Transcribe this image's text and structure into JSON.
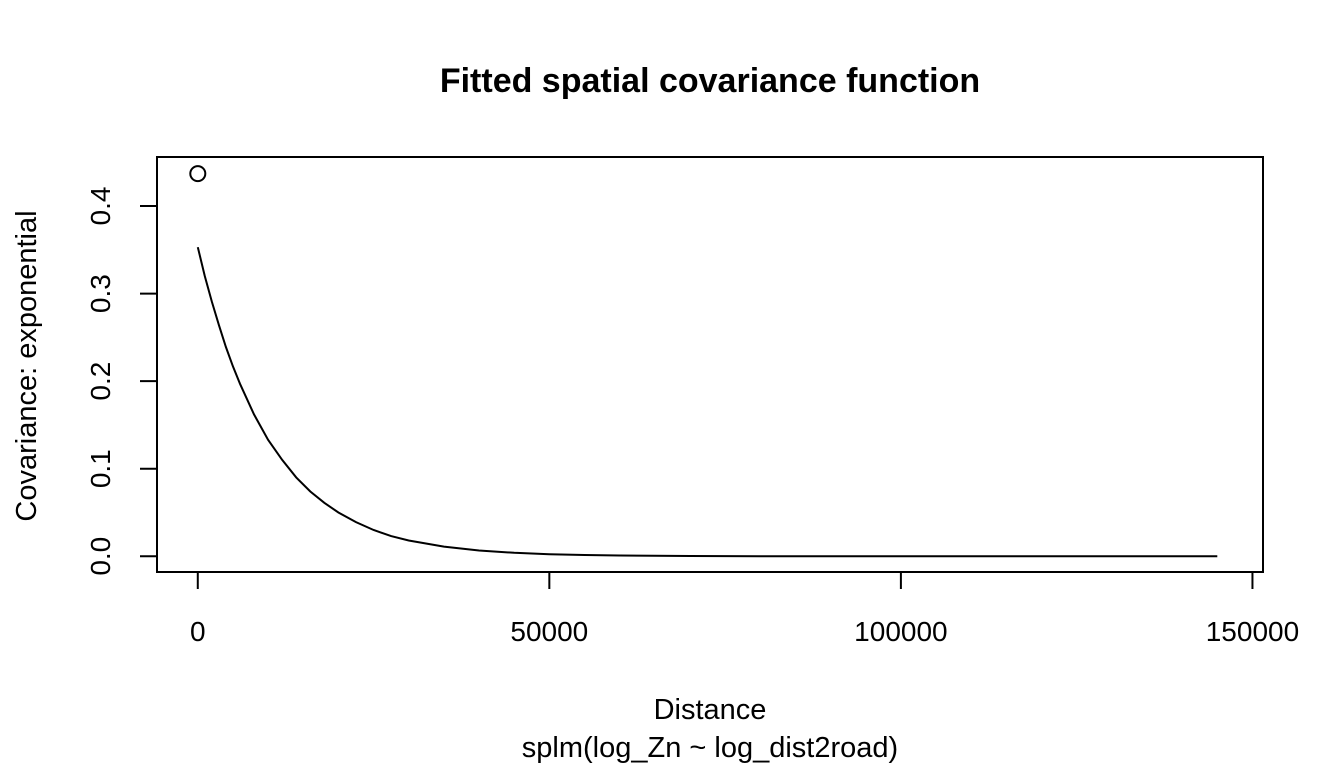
{
  "chart_data": {
    "type": "line",
    "title": "Fitted spatial covariance function",
    "xlabel": "Distance",
    "subtitle": "splm(log_Zn ~ log_dist2road)",
    "ylabel": "Covariance: exponential",
    "xlim": [
      -5800,
      151500
    ],
    "ylim": [
      -0.018,
      0.456
    ],
    "x_ticks": [
      0,
      50000,
      100000,
      150000
    ],
    "x_tick_labels": [
      "0",
      "50000",
      "100000",
      "150000"
    ],
    "y_ticks": [
      0.0,
      0.1,
      0.2,
      0.3,
      0.4
    ],
    "y_tick_labels": [
      "0.0",
      "0.1",
      "0.2",
      "0.3",
      "0.4"
    ],
    "grid": false,
    "series": [
      {
        "kind": "line",
        "x": [
          0,
          1000,
          2000,
          3000,
          4000,
          5000,
          6000,
          8000,
          10000,
          12000,
          14000,
          16000,
          18000,
          20000,
          22500,
          25000,
          27500,
          30000,
          35000,
          40000,
          45000,
          50000,
          55000,
          60000,
          70000,
          80000,
          100000,
          120000,
          145000
        ],
        "y": [
          0.353,
          0.32,
          0.291,
          0.264,
          0.239,
          0.217,
          0.197,
          0.162,
          0.133,
          0.11,
          0.09,
          0.074,
          0.061,
          0.05,
          0.039,
          0.03,
          0.023,
          0.018,
          0.011,
          0.0065,
          0.0039,
          0.0023,
          0.0014,
          0.0008,
          0.0003,
          0.0001,
          0.0,
          0.0,
          0.0
        ]
      },
      {
        "kind": "point",
        "x": [
          0
        ],
        "y": [
          0.437
        ]
      }
    ]
  }
}
